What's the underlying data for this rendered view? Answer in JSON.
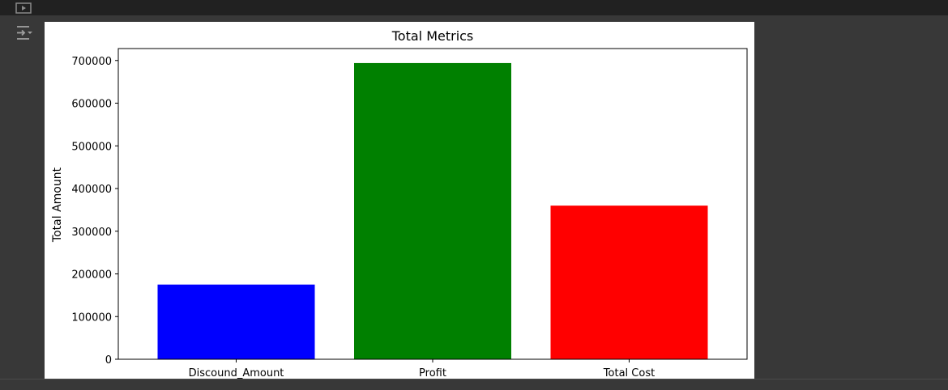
{
  "toolbar": {
    "run_icon": "play-icon",
    "output_settings_icon": "output-settings-icon"
  },
  "colors": {
    "editor_bg": "#383838",
    "topbar_bg": "#212121",
    "panel_bg": "#ffffff"
  },
  "chart_data": {
    "type": "bar",
    "title": "Total Metrics",
    "xlabel": "",
    "ylabel": "Total Amount",
    "categories": [
      "Discound_Amount",
      "Profit",
      "Total Cost"
    ],
    "values": [
      175000,
      694000,
      360000
    ],
    "colors": [
      "#0000ff",
      "#008000",
      "#ff0000"
    ],
    "ylim": [
      0,
      728000
    ],
    "yticks": [
      0,
      100000,
      200000,
      300000,
      400000,
      500000,
      600000,
      700000
    ],
    "ytick_labels": [
      "0",
      "100000",
      "200000",
      "300000",
      "400000",
      "500000",
      "600000",
      "700000"
    ],
    "grid": false,
    "legend": "none"
  }
}
